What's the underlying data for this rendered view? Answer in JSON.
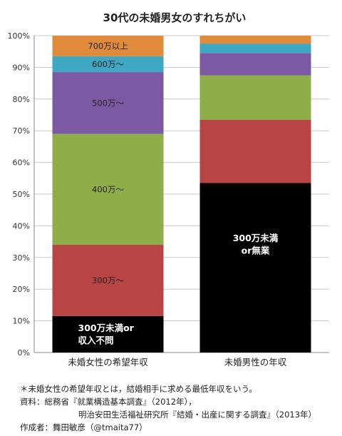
{
  "chart_data": {
    "type": "bar",
    "stacked": true,
    "title": "30代の未婚男女のすれちがい",
    "categories": [
      "未婚女性の希望年収",
      "未婚男性の年収"
    ],
    "ylim": [
      0,
      100
    ],
    "yticks": [
      "0%",
      "10%",
      "20%",
      "30%",
      "40%",
      "50%",
      "60%",
      "70%",
      "80%",
      "90%",
      "100%"
    ],
    "series": [
      {
        "name": "300万未満",
        "color": "#000000",
        "values": [
          11.5,
          53.5
        ]
      },
      {
        "name": "300万〜",
        "color": "#b84444",
        "values": [
          22.5,
          20.0
        ]
      },
      {
        "name": "400万〜",
        "color": "#8fae4a",
        "values": [
          35.0,
          14.0
        ]
      },
      {
        "name": "500万〜",
        "color": "#7b5aa3",
        "values": [
          19.5,
          7.0
        ]
      },
      {
        "name": "600万〜",
        "color": "#3ea7c1",
        "values": [
          5.0,
          3.0
        ]
      },
      {
        "name": "700万以上",
        "color": "#e08a3c",
        "values": [
          6.5,
          2.5
        ]
      }
    ],
    "segment_labels": [
      [
        "300万未満or\n収入不問",
        "300万未満\nor無業"
      ],
      [
        "300万〜",
        ""
      ],
      [
        "400万〜",
        ""
      ],
      [
        "500万〜",
        ""
      ],
      [
        "600万〜",
        ""
      ],
      [
        "700万以上",
        ""
      ]
    ],
    "grid": true,
    "legend": "none"
  },
  "notes": {
    "footnote": "＊未婚女性の希望年収とは，結婚相手に求める最低年収をいう。",
    "source_line1": "資料：総務省『就業構造基本調査』（2012年），",
    "source_line2": "明治安田生活福祉研究所『結婚・出産に関する調査』（2013年）",
    "author": "作成者：舞田敏彦（@tmaita77）"
  }
}
